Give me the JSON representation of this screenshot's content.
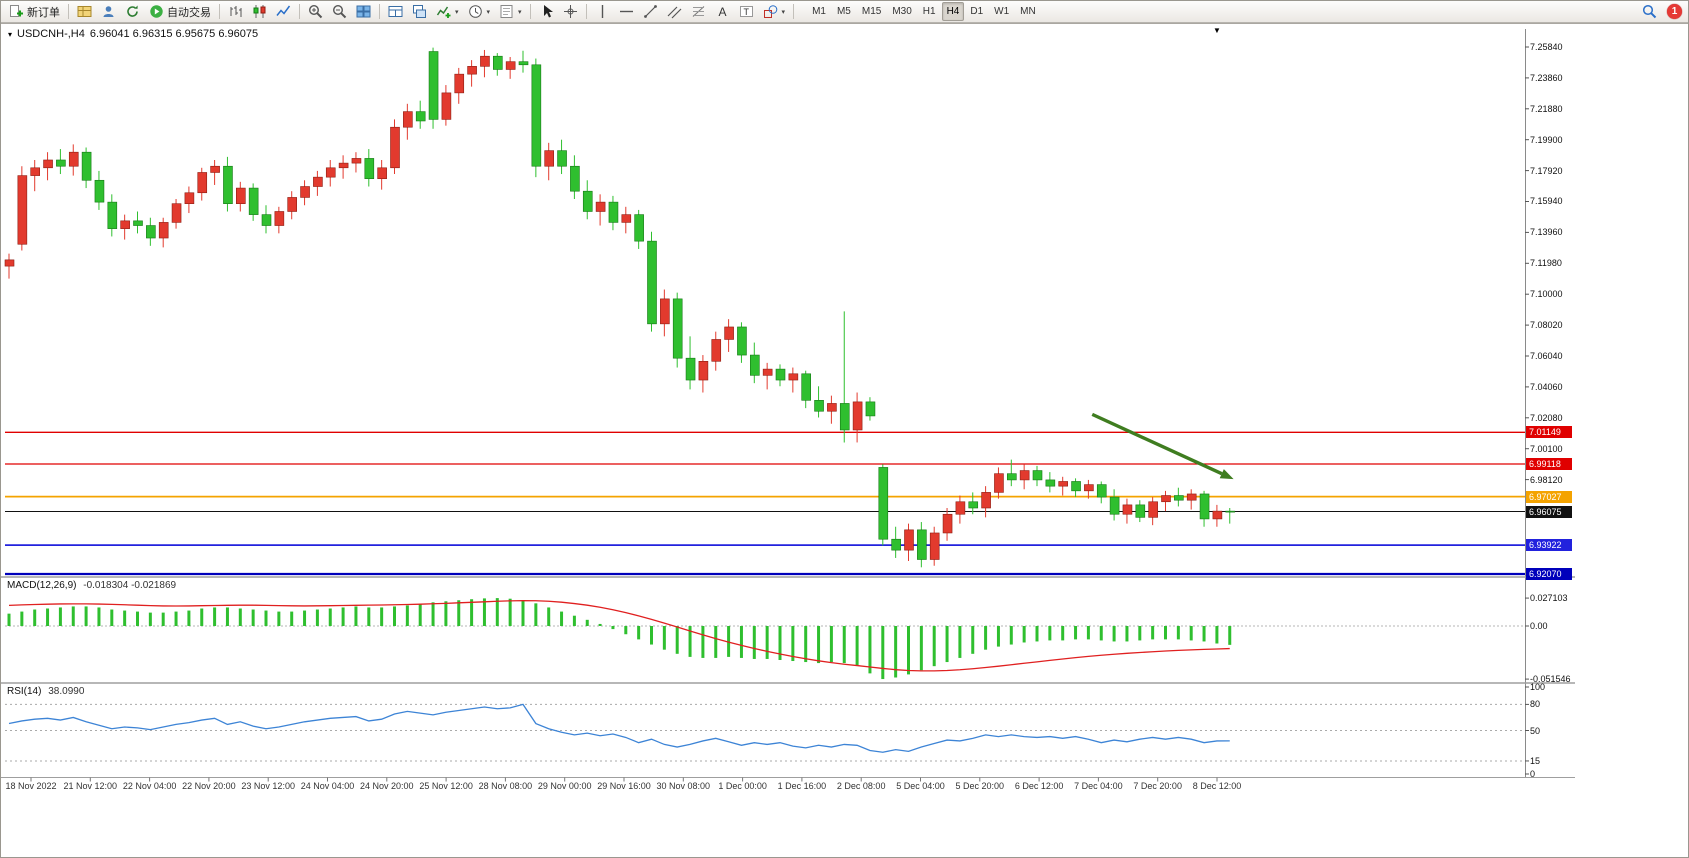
{
  "window": {
    "notification_count": "1"
  },
  "glyphs": {
    "caret_down": "▾",
    "triangle_down": "▼"
  },
  "header": {
    "title": "USDCNH-,H4",
    "ohlc": "6.96041 6.96315 6.95675 6.96075"
  },
  "toolbar": {
    "items": [
      {
        "kind": "button",
        "name": "new-order-button",
        "icon": "new-order-icon",
        "label": "新订单"
      },
      {
        "kind": "sep"
      },
      {
        "kind": "icon",
        "name": "profiles-button",
        "icon": "profile-icon"
      },
      {
        "kind": "icon",
        "name": "accounts-button",
        "icon": "accounts-icon"
      },
      {
        "kind": "icon",
        "name": "refresh-button",
        "icon": "refresh-icon"
      },
      {
        "kind": "button",
        "name": "autotrade-button",
        "icon": "autotrade-icon",
        "label": "自动交易"
      },
      {
        "kind": "sep"
      },
      {
        "kind": "icon",
        "name": "bar-chart-button",
        "icon": "bar-chart-icon"
      },
      {
        "kind": "icon",
        "name": "candlestick-chart-button",
        "icon": "candlestick-chart-icon"
      },
      {
        "kind": "icon",
        "name": "line-chart-button",
        "icon": "line-chart-icon"
      },
      {
        "kind": "sep"
      },
      {
        "kind": "icon",
        "name": "zoom-in-button",
        "icon": "zoom-in-icon"
      },
      {
        "kind": "icon",
        "name": "zoom-out-button",
        "icon": "zoom-out-icon"
      },
      {
        "kind": "icon",
        "name": "tile-windows-button",
        "icon": "tile-windows-icon"
      },
      {
        "kind": "sep"
      },
      {
        "kind": "icon",
        "name": "auto-arrange-button",
        "icon": "arrange-icon"
      },
      {
        "kind": "icon",
        "name": "cascade-button",
        "icon": "cascade-icon"
      },
      {
        "kind": "icon-caret",
        "name": "indicators-button",
        "icon": "indicators-icon"
      },
      {
        "kind": "icon-caret",
        "name": "periods-button",
        "icon": "periods-icon"
      },
      {
        "kind": "icon-caret",
        "name": "templates-button",
        "icon": "templates-icon"
      },
      {
        "kind": "sep"
      },
      {
        "kind": "icon",
        "name": "cursor-button",
        "icon": "cursor-icon"
      },
      {
        "kind": "icon",
        "name": "crosshair-button",
        "icon": "crosshair-icon"
      },
      {
        "kind": "sep"
      },
      {
        "kind": "icon",
        "name": "vertical-line-button",
        "icon": "vertical-line-icon"
      },
      {
        "kind": "icon",
        "name": "horizontal-line-button",
        "icon": "horizontal-line-icon"
      },
      {
        "kind": "icon",
        "name": "trendline-button",
        "icon": "trendline-icon"
      },
      {
        "kind": "icon",
        "name": "channel-button",
        "icon": "channel-icon"
      },
      {
        "kind": "icon",
        "name": "fibonacci-button",
        "icon": "fibonacci-icon"
      },
      {
        "kind": "icon",
        "name": "text-button",
        "icon": "text-icon"
      },
      {
        "kind": "icon",
        "name": "text-label-button",
        "icon": "label-icon"
      },
      {
        "kind": "icon-caret",
        "name": "shapes-button",
        "icon": "shapes-icon"
      },
      {
        "kind": "sep"
      }
    ],
    "timeframes": [
      "M1",
      "M5",
      "M15",
      "M30",
      "H1",
      "H4",
      "D1",
      "W1",
      "MN"
    ],
    "active_timeframe": "H4"
  },
  "chart_data": {
    "type": "candlestick",
    "symbol": "USDCNH-",
    "timeframe": "H4",
    "open": "6.96041",
    "high": "6.96315",
    "low": "6.95675",
    "close": "6.96075",
    "up_color": "#e23a2e",
    "down_color": "#2fbf2f",
    "price_axis_labels": [
      "7.25840",
      "7.23860",
      "7.21880",
      "7.19900",
      "7.17920",
      "7.15940",
      "7.13960",
      "7.11980",
      "7.10000",
      "7.08020",
      "7.06040",
      "7.04060",
      "7.02080",
      "7.00100",
      "6.98120"
    ],
    "time_labels": [
      "18 Nov 2022",
      "21 Nov 12:00",
      "22 Nov 04:00",
      "22 Nov 20:00",
      "23 Nov 12:00",
      "24 Nov 04:00",
      "24 Nov 20:00",
      "25 Nov 12:00",
      "28 Nov 08:00",
      "29 Nov 00:00",
      "29 Nov 16:00",
      "30 Nov 08:00",
      "1 Dec 00:00",
      "1 Dec 16:00",
      "2 Dec 08:00",
      "5 Dec 04:00",
      "5 Dec 20:00",
      "6 Dec 12:00",
      "7 Dec 04:00",
      "7 Dec 20:00",
      "8 Dec 12:00"
    ],
    "candles": [
      [
        7.118,
        7.126,
        7.11,
        7.122
      ],
      [
        7.132,
        7.182,
        7.128,
        7.176
      ],
      [
        7.176,
        7.186,
        7.166,
        7.181
      ],
      [
        7.181,
        7.191,
        7.173,
        7.186
      ],
      [
        7.186,
        7.193,
        7.177,
        7.182
      ],
      [
        7.182,
        7.196,
        7.176,
        7.191
      ],
      [
        7.191,
        7.194,
        7.168,
        7.173
      ],
      [
        7.173,
        7.179,
        7.154,
        7.159
      ],
      [
        7.159,
        7.164,
        7.137,
        7.142
      ],
      [
        7.142,
        7.151,
        7.135,
        7.147
      ],
      [
        7.147,
        7.153,
        7.139,
        7.144
      ],
      [
        7.144,
        7.149,
        7.131,
        7.136
      ],
      [
        7.136,
        7.149,
        7.13,
        7.146
      ],
      [
        7.146,
        7.161,
        7.142,
        7.158
      ],
      [
        7.158,
        7.169,
        7.152,
        7.165
      ],
      [
        7.165,
        7.181,
        7.16,
        7.178
      ],
      [
        7.178,
        7.186,
        7.17,
        7.182
      ],
      [
        7.182,
        7.188,
        7.153,
        7.158
      ],
      [
        7.158,
        7.172,
        7.153,
        7.168
      ],
      [
        7.168,
        7.171,
        7.147,
        7.151
      ],
      [
        7.151,
        7.157,
        7.139,
        7.144
      ],
      [
        7.144,
        7.156,
        7.139,
        7.153
      ],
      [
        7.153,
        7.166,
        7.148,
        7.162
      ],
      [
        7.162,
        7.173,
        7.157,
        7.169
      ],
      [
        7.169,
        7.179,
        7.163,
        7.175
      ],
      [
        7.175,
        7.186,
        7.169,
        7.181
      ],
      [
        7.181,
        7.189,
        7.174,
        7.184
      ],
      [
        7.184,
        7.191,
        7.178,
        7.187
      ],
      [
        7.187,
        7.193,
        7.169,
        7.174
      ],
      [
        7.174,
        7.186,
        7.167,
        7.181
      ],
      [
        7.181,
        7.212,
        7.177,
        7.207
      ],
      [
        7.207,
        7.222,
        7.199,
        7.217
      ],
      [
        7.217,
        7.224,
        7.206,
        7.211
      ],
      [
        7.2555,
        7.258,
        7.206,
        7.212
      ],
      [
        7.212,
        7.234,
        7.208,
        7.229
      ],
      [
        7.229,
        7.245,
        7.222,
        7.241
      ],
      [
        7.241,
        7.25,
        7.233,
        7.246
      ],
      [
        7.246,
        7.2565,
        7.239,
        7.2525
      ],
      [
        7.2525,
        7.2545,
        7.24,
        7.244
      ],
      [
        7.244,
        7.252,
        7.238,
        7.249
      ],
      [
        7.249,
        7.256,
        7.242,
        7.247
      ],
      [
        7.247,
        7.251,
        7.175,
        7.182
      ],
      [
        7.182,
        7.197,
        7.173,
        7.192
      ],
      [
        7.192,
        7.199,
        7.177,
        7.182
      ],
      [
        7.182,
        7.189,
        7.161,
        7.166
      ],
      [
        7.166,
        7.173,
        7.148,
        7.153
      ],
      [
        7.153,
        7.164,
        7.144,
        7.159
      ],
      [
        7.159,
        7.163,
        7.141,
        7.146
      ],
      [
        7.146,
        7.156,
        7.139,
        7.151
      ],
      [
        7.151,
        7.154,
        7.129,
        7.134
      ],
      [
        7.134,
        7.14,
        7.076,
        7.081
      ],
      [
        7.081,
        7.103,
        7.073,
        7.097
      ],
      [
        7.097,
        7.101,
        7.053,
        7.059
      ],
      [
        7.059,
        7.073,
        7.039,
        7.045
      ],
      [
        7.045,
        7.061,
        7.037,
        7.057
      ],
      [
        7.057,
        7.076,
        7.051,
        7.071
      ],
      [
        7.071,
        7.084,
        7.063,
        7.079
      ],
      [
        7.079,
        7.082,
        7.056,
        7.061
      ],
      [
        7.061,
        7.069,
        7.043,
        7.048
      ],
      [
        7.048,
        7.056,
        7.039,
        7.052
      ],
      [
        7.052,
        7.055,
        7.041,
        7.045
      ],
      [
        7.045,
        7.053,
        7.037,
        7.049
      ],
      [
        7.049,
        7.051,
        7.027,
        7.032
      ],
      [
        7.032,
        7.041,
        7.021,
        7.025
      ],
      [
        7.025,
        7.035,
        7.017,
        7.03
      ],
      [
        7.03,
        7.089,
        7.005,
        7.013
      ],
      [
        7.013,
        7.037,
        7.005,
        7.031
      ],
      [
        7.031,
        7.034,
        7.019,
        7.022
      ],
      [
        6.989,
        6.991,
        6.939,
        6.943
      ],
      [
        6.943,
        6.951,
        6.931,
        6.936
      ],
      [
        6.936,
        6.953,
        6.929,
        6.949
      ],
      [
        6.949,
        6.954,
        6.925,
        6.93
      ],
      [
        6.93,
        6.951,
        6.926,
        6.947
      ],
      [
        6.947,
        6.963,
        6.942,
        6.959
      ],
      [
        6.959,
        6.971,
        6.953,
        6.967
      ],
      [
        6.967,
        6.973,
        6.959,
        6.963
      ],
      [
        6.963,
        6.977,
        6.957,
        6.973
      ],
      [
        6.973,
        6.989,
        6.969,
        6.985
      ],
      [
        6.985,
        6.994,
        6.977,
        6.981
      ],
      [
        6.981,
        6.991,
        6.975,
        6.987
      ],
      [
        6.987,
        6.99,
        6.977,
        6.981
      ],
      [
        6.981,
        6.986,
        6.973,
        6.977
      ],
      [
        6.977,
        6.983,
        6.971,
        6.98
      ],
      [
        6.98,
        6.982,
        6.97,
        6.974
      ],
      [
        6.974,
        6.981,
        6.969,
        6.978
      ],
      [
        6.978,
        6.98,
        6.966,
        6.97
      ],
      [
        6.97,
        6.975,
        6.955,
        6.959
      ],
      [
        6.959,
        6.969,
        6.953,
        6.965
      ],
      [
        6.965,
        6.968,
        6.954,
        6.957
      ],
      [
        6.957,
        6.97,
        6.952,
        6.967
      ],
      [
        6.967,
        6.974,
        6.961,
        6.971
      ],
      [
        6.971,
        6.976,
        6.964,
        6.968
      ],
      [
        6.968,
        6.975,
        6.962,
        6.972
      ],
      [
        6.972,
        6.974,
        6.951,
        6.956
      ],
      [
        6.956,
        6.965,
        6.951,
        6.961
      ],
      [
        6.961,
        6.963,
        6.953,
        6.9608
      ]
    ],
    "hlines": [
      {
        "price": 7.01149,
        "label": "7.01149",
        "color": "#e00000",
        "width": 1.3
      },
      {
        "price": 6.99118,
        "label": "6.99118",
        "color": "#e00000",
        "width": 1.3
      },
      {
        "price": 6.97027,
        "label": "6.97027",
        "color": "#f4a300",
        "width": 1.7
      },
      {
        "price": 6.96075,
        "label": "6.96075",
        "color": "#111111",
        "width": 1.0,
        "role": "current-price"
      },
      {
        "price": 6.93922,
        "label": "6.93922",
        "color": "#2222dd",
        "width": 1.8
      },
      {
        "price": 6.9207,
        "label": "6.92070",
        "color": "#0000bb",
        "width": 2.2
      }
    ],
    "trend_arrow": {
      "from_bar": 84.3,
      "from_price": 7.023,
      "to_bar": 95.3,
      "to_price": 6.9815,
      "color": "#3f7d20"
    },
    "macd": {
      "label": "MACD(12,26,9)",
      "values_text": "-0.018304 -0.021869",
      "axis_labels": [
        "0.027103",
        "0.00",
        "-0.051546"
      ],
      "histogram_color": "#2fbf2f",
      "signal_color": "#e02020",
      "histogram": [
        0.012,
        0.014,
        0.016,
        0.017,
        0.018,
        0.019,
        0.019,
        0.018,
        0.016,
        0.015,
        0.014,
        0.013,
        0.013,
        0.014,
        0.015,
        0.017,
        0.018,
        0.018,
        0.017,
        0.016,
        0.015,
        0.014,
        0.014,
        0.015,
        0.016,
        0.017,
        0.018,
        0.019,
        0.018,
        0.018,
        0.019,
        0.02,
        0.021,
        0.023,
        0.024,
        0.025,
        0.026,
        0.0268,
        0.0271,
        0.0265,
        0.025,
        0.022,
        0.018,
        0.014,
        0.01,
        0.006,
        0.002,
        -0.003,
        -0.008,
        -0.013,
        -0.018,
        -0.023,
        -0.027,
        -0.03,
        -0.031,
        -0.031,
        -0.03,
        -0.031,
        -0.032,
        -0.032,
        -0.033,
        -0.034,
        -0.035,
        -0.036,
        -0.035,
        -0.036,
        -0.038,
        -0.046,
        -0.0515,
        -0.05,
        -0.047,
        -0.043,
        -0.039,
        -0.035,
        -0.031,
        -0.027,
        -0.023,
        -0.02,
        -0.018,
        -0.016,
        -0.015,
        -0.014,
        -0.014,
        -0.013,
        -0.013,
        -0.014,
        -0.015,
        -0.015,
        -0.014,
        -0.013,
        -0.013,
        -0.013,
        -0.014,
        -0.015,
        -0.017,
        -0.0183
      ],
      "signal": [
        0.02,
        0.0205,
        0.0209,
        0.0212,
        0.0214,
        0.0215,
        0.0215,
        0.0213,
        0.021,
        0.0206,
        0.0202,
        0.0198,
        0.0195,
        0.0194,
        0.0195,
        0.0197,
        0.0199,
        0.0201,
        0.0202,
        0.0202,
        0.02,
        0.0198,
        0.0196,
        0.0195,
        0.0196,
        0.0197,
        0.0199,
        0.0201,
        0.0203,
        0.0204,
        0.0206,
        0.0209,
        0.0212,
        0.0216,
        0.022,
        0.0225,
        0.023,
        0.0235,
        0.024,
        0.0244,
        0.0246,
        0.0245,
        0.024,
        0.0231,
        0.0218,
        0.0202,
        0.0182,
        0.0158,
        0.013,
        0.0098,
        0.0064,
        0.0028,
        -0.001,
        -0.0048,
        -0.0086,
        -0.0122,
        -0.0156,
        -0.0188,
        -0.0218,
        -0.0246,
        -0.0272,
        -0.0296,
        -0.0318,
        -0.0338,
        -0.0356,
        -0.0371,
        -0.0384,
        -0.0398,
        -0.0412,
        -0.0424,
        -0.0432,
        -0.0436,
        -0.0436,
        -0.0432,
        -0.0425,
        -0.0415,
        -0.0403,
        -0.039,
        -0.0376,
        -0.0362,
        -0.0348,
        -0.0334,
        -0.032,
        -0.0307,
        -0.0295,
        -0.0284,
        -0.0274,
        -0.0265,
        -0.0257,
        -0.025,
        -0.0243,
        -0.0237,
        -0.0232,
        -0.0227,
        -0.0223,
        -0.0219
      ]
    },
    "rsi": {
      "label": "RSI(14)",
      "value_text": "38.0990",
      "axis_labels": [
        "100",
        "80",
        "50",
        "15",
        "0"
      ],
      "levels": [
        80,
        50,
        15
      ],
      "line_color": "#3d84d6",
      "values": [
        58,
        61,
        63,
        64,
        62,
        65,
        60,
        56,
        52,
        54,
        53,
        51,
        54,
        57,
        59,
        62,
        64,
        57,
        60,
        55,
        52,
        54,
        57,
        60,
        62,
        64,
        65,
        66,
        61,
        63,
        69,
        72,
        70,
        68,
        71,
        73,
        75,
        77,
        75,
        76,
        80,
        58,
        52,
        48,
        45,
        47,
        44,
        46,
        42,
        36,
        40,
        34,
        31,
        34,
        38,
        41,
        37,
        33,
        36,
        34,
        36,
        32,
        30,
        33,
        31,
        34,
        33,
        27,
        25,
        28,
        26,
        31,
        35,
        39,
        38,
        41,
        45,
        43,
        45,
        43,
        42,
        43,
        41,
        43,
        40,
        36,
        39,
        37,
        40,
        42,
        40,
        42,
        40,
        36,
        38,
        38.1
      ]
    }
  }
}
